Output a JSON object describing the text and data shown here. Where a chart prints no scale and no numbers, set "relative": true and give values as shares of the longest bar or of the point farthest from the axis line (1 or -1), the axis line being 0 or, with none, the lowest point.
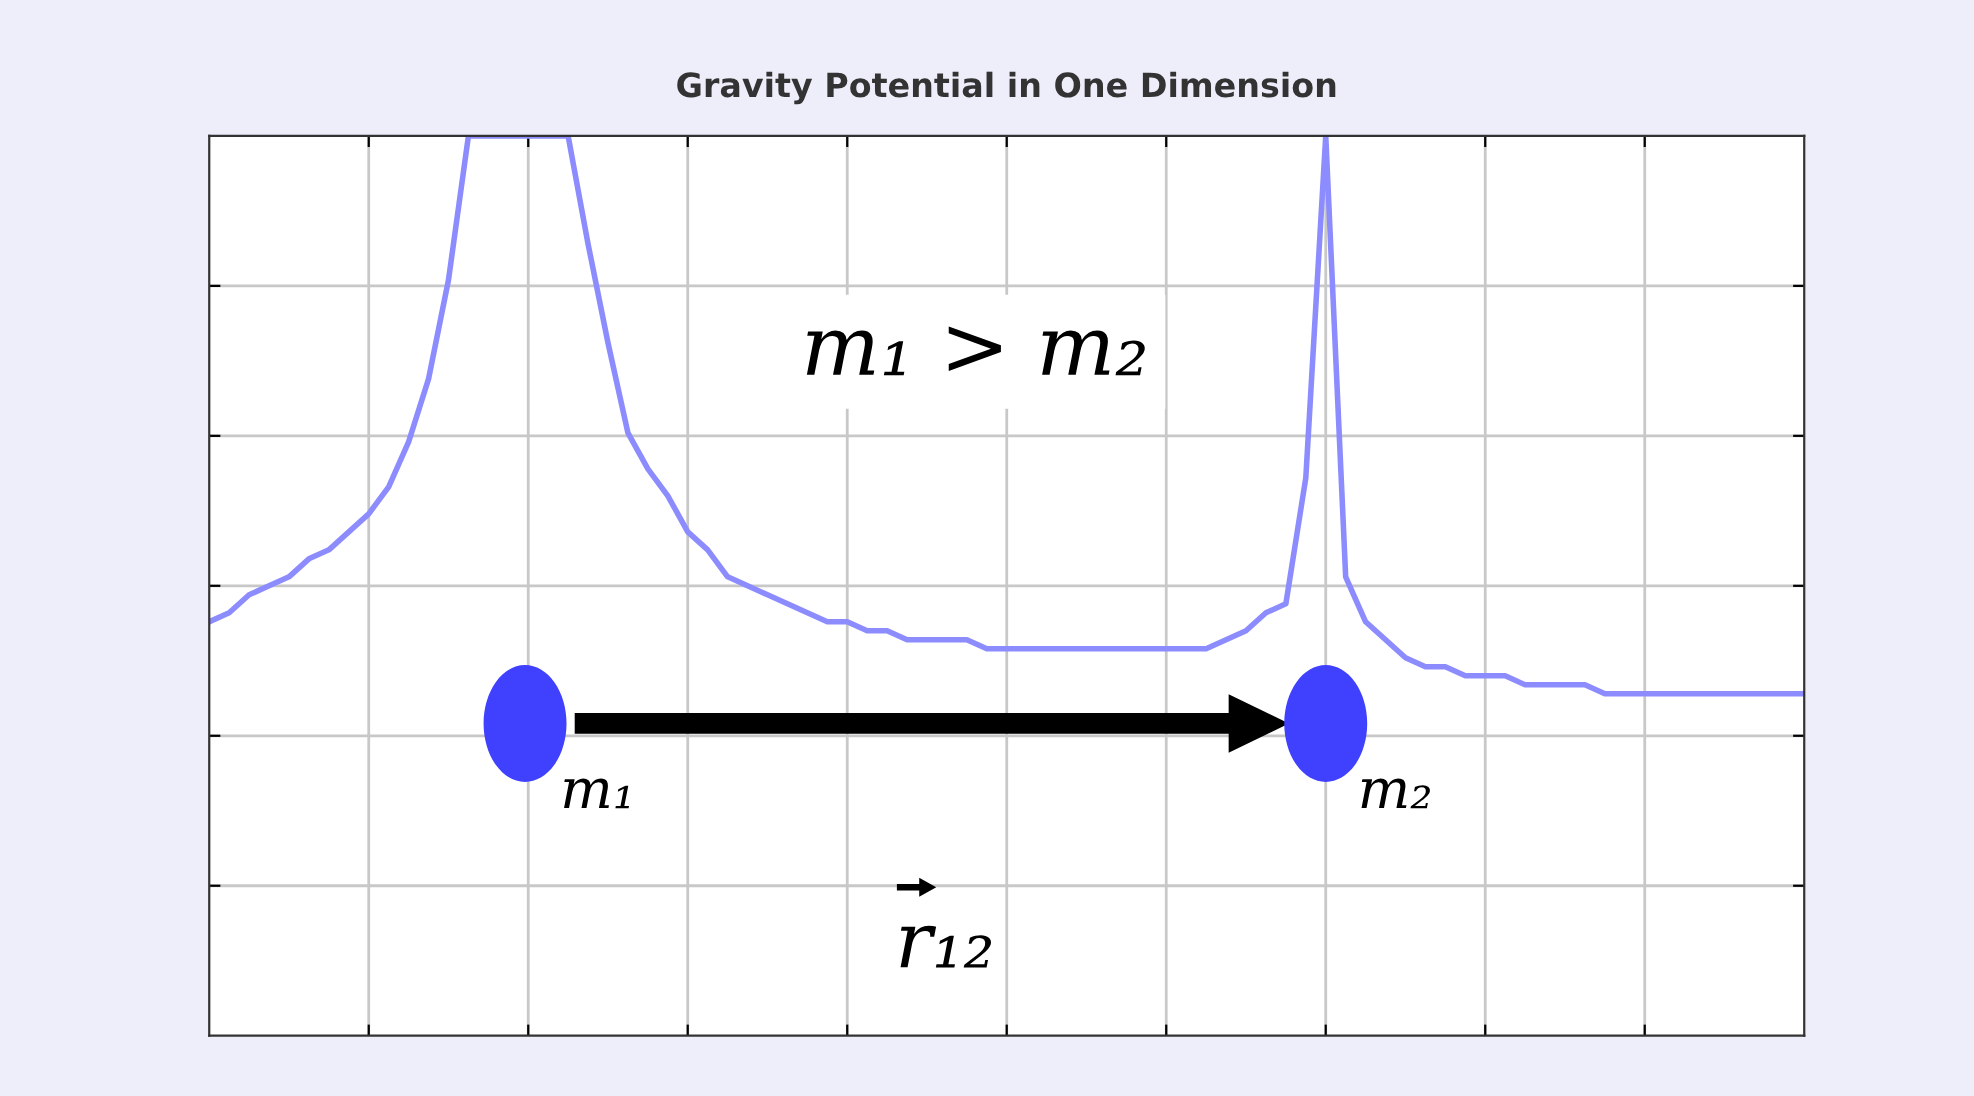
{
  "chart_data": {
    "type": "line",
    "title": "Gravity Potential in One Dimension",
    "relative": true,
    "grid": true,
    "tick_labels": false,
    "categories": [
      null,
      null,
      null,
      null,
      null,
      null,
      null,
      null,
      null,
      null,
      null,
      null,
      null,
      null,
      null,
      null,
      null,
      null,
      null,
      null,
      null,
      null,
      null,
      null,
      null,
      null,
      null,
      null,
      null,
      null,
      null,
      null,
      null,
      null,
      null,
      null,
      null,
      null,
      null,
      null,
      null,
      null,
      null,
      null,
      null,
      null,
      null,
      null,
      null,
      null,
      null,
      null,
      null,
      null,
      null,
      null,
      null,
      null,
      null,
      null,
      null,
      null,
      null,
      null,
      null,
      null,
      null,
      null,
      null,
      null,
      null,
      null,
      null,
      null,
      null,
      null,
      null,
      null,
      null,
      null,
      null
    ],
    "series": [
      {
        "color": "#8c8cff",
        "marker": "none",
        "line_style": "solid",
        "values": [
          0.46,
          0.47,
          0.49,
          0.5,
          0.51,
          0.53,
          0.54,
          0.56,
          0.58,
          0.61,
          0.66,
          0.73,
          0.84,
          1,
          1,
          1,
          1,
          1,
          1,
          0.88,
          0.77,
          0.67,
          0.63,
          0.6,
          0.56,
          0.54,
          0.51,
          0.5,
          0.49,
          0.48,
          0.47,
          0.46,
          0.46,
          0.45,
          0.45,
          0.44,
          0.44,
          0.44,
          0.44,
          0.43,
          0.43,
          0.43,
          0.43,
          0.43,
          0.43,
          0.43,
          0.43,
          0.43,
          0.43,
          0.43,
          0.43,
          0.44,
          0.45,
          0.47,
          0.48,
          0.62,
          1,
          0.51,
          0.46,
          0.44,
          0.42,
          0.41,
          0.41,
          0.4,
          0.4,
          0.4,
          0.39,
          0.39,
          0.39,
          0.39,
          0.38,
          0.38,
          0.38,
          0.38,
          0.38,
          0.38,
          0.38,
          0.38,
          0.38,
          0.38,
          0.38
        ]
      }
    ],
    "annotations": [
      "m₁ > m₂",
      "m₁",
      "m₂",
      "r₁₂"
    ]
  }
}
